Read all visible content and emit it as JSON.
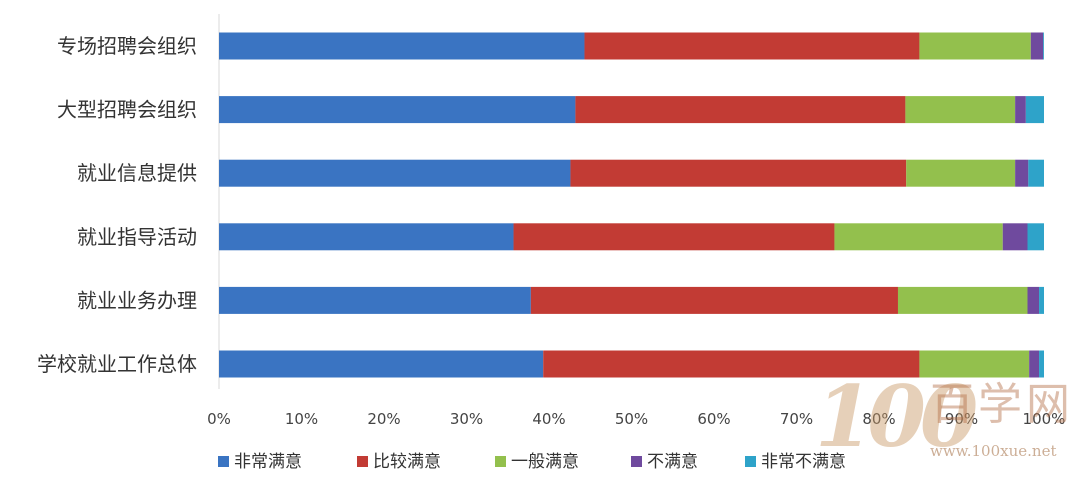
{
  "chart_data": {
    "type": "bar",
    "orientation": "horizontal",
    "stacked": true,
    "percent_stacked": true,
    "categories": [
      "专场招聘会组织",
      "大型招聘会组织",
      "就业信息提供",
      "就业指导活动",
      "就业业务办理",
      "学校就业工作总体"
    ],
    "series": [
      {
        "name": "非常满意",
        "color": "#3A74C2",
        "values": [
          44.3,
          43.2,
          42.6,
          35.7,
          37.8,
          39.3
        ]
      },
      {
        "name": "比较满意",
        "color": "#C23B34",
        "values": [
          40.6,
          40.0,
          40.7,
          38.9,
          44.5,
          45.6
        ]
      },
      {
        "name": "一般满意",
        "color": "#93C04D",
        "values": [
          13.5,
          13.3,
          13.2,
          20.4,
          15.7,
          13.3
        ]
      },
      {
        "name": "不满意",
        "color": "#6F4A9E",
        "values": [
          1.5,
          1.3,
          1.6,
          3.0,
          1.4,
          1.2
        ]
      },
      {
        "name": "非常不满意",
        "color": "#2EA3C9",
        "values": [
          0.1,
          2.2,
          1.9,
          2.0,
          0.6,
          0.6
        ]
      }
    ],
    "xlim": [
      0,
      100
    ],
    "x_ticks": [
      "0%",
      "10%",
      "20%",
      "30%",
      "40%",
      "50%",
      "60%",
      "70%",
      "80%",
      "90%",
      "100%"
    ],
    "legend_position": "bottom",
    "grid": false
  },
  "watermark": {
    "digits": "100",
    "name": "百学网",
    "url": "www.100xue.net"
  }
}
